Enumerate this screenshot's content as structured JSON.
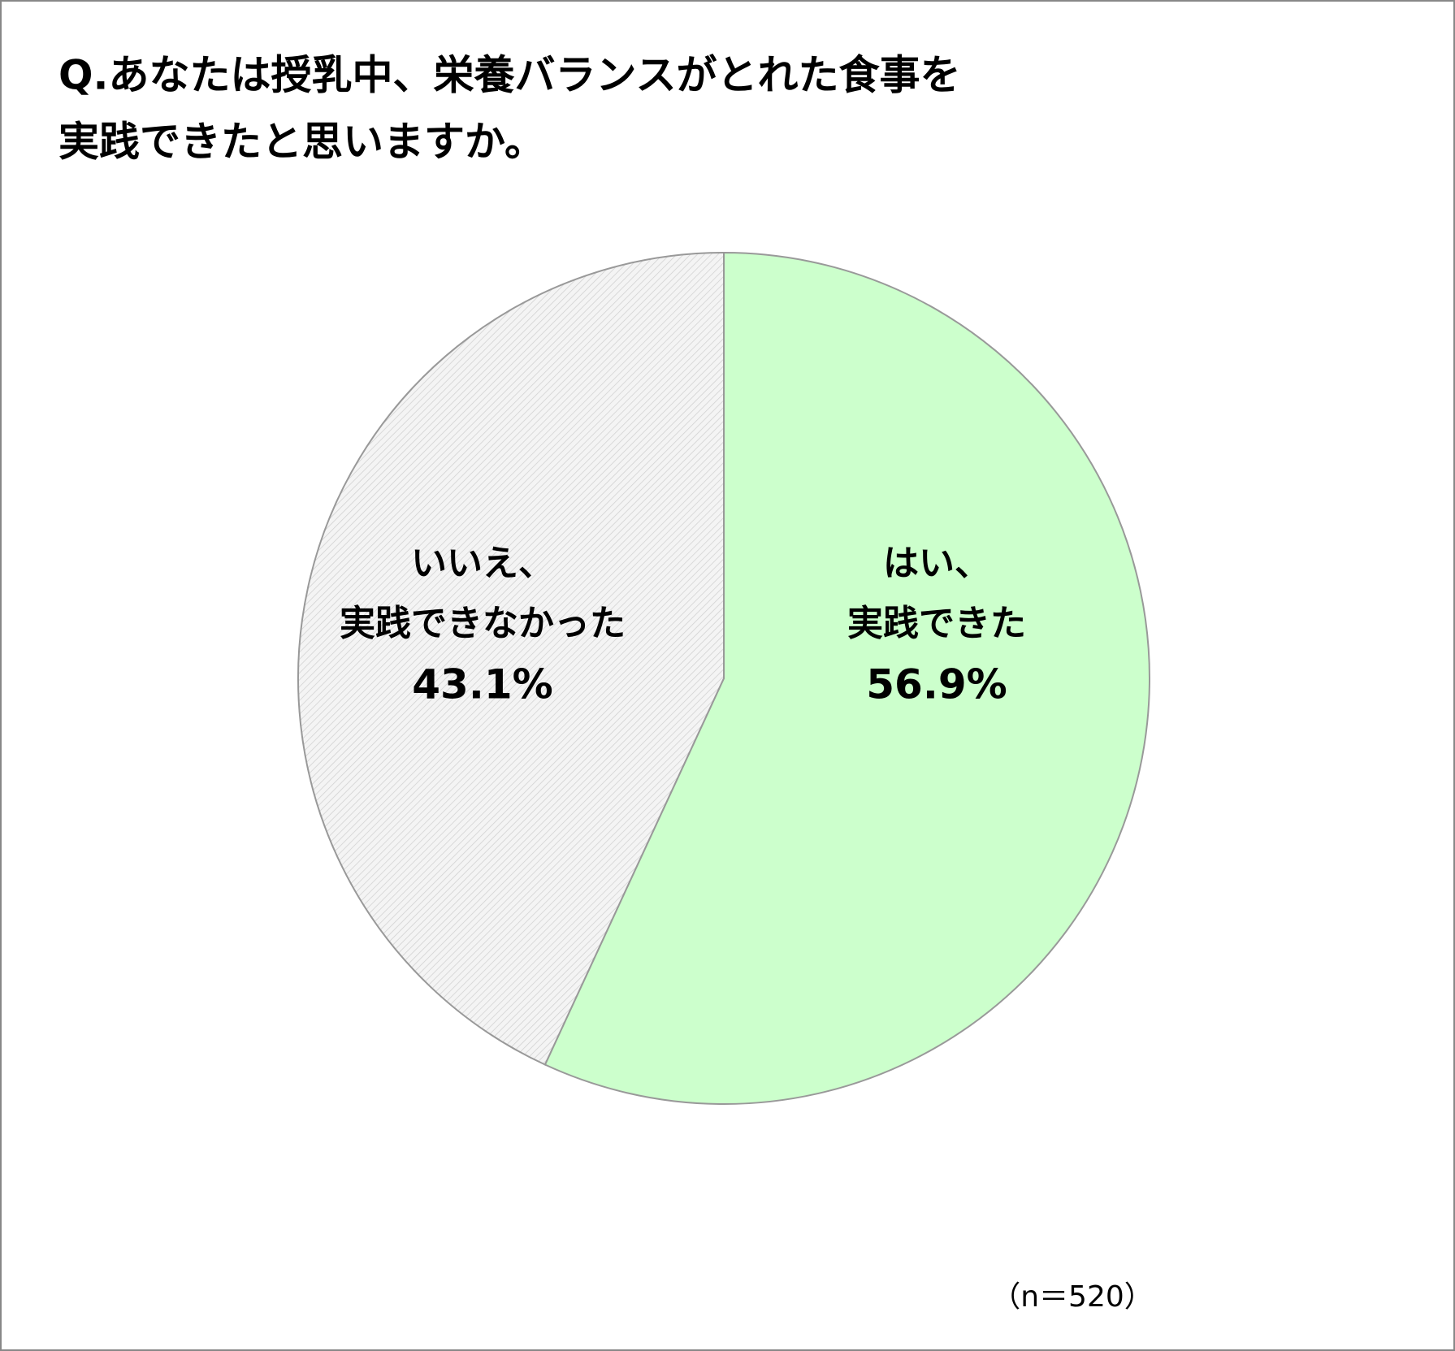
{
  "chart_data": {
    "type": "pie",
    "title": [
      "Q.あなたは授乳中、栄養バランスがとれた食事を",
      "実践できたと思いますか。"
    ],
    "categories": [
      [
        "はい、",
        "実践できた"
      ],
      [
        "いいえ、",
        "実践できなかった"
      ]
    ],
    "values": [
      56.9,
      43.1
    ],
    "value_labels": [
      "56.9%",
      "43.1%"
    ],
    "colors": [
      "#ccffcc",
      "#f2f2f2"
    ],
    "note": "（n＝520）"
  }
}
